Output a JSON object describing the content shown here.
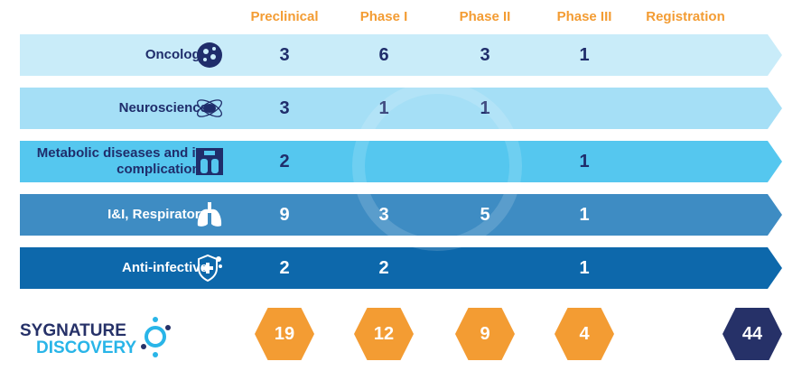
{
  "phases": [
    "Preclinical",
    "Phase I",
    "Phase II",
    "Phase III",
    "Registration"
  ],
  "rows": [
    {
      "label": "Oncology",
      "icon": "cells-icon",
      "values": [
        "3",
        "6",
        "3",
        "1",
        ""
      ],
      "color": "#c9ecf9",
      "text": "#1f2d6b"
    },
    {
      "label": "Neuroscience",
      "icon": "brain-atom-icon",
      "values": [
        "3",
        "1",
        "1",
        "",
        ""
      ],
      "color": "#a5dff6",
      "text": "#1f2d6b"
    },
    {
      "label": "Metabolic diseases and its complications",
      "icon": "scale-icon",
      "values": [
        "2",
        "",
        "",
        "1",
        ""
      ],
      "color": "#55c7ef",
      "text": "#1f2d6b"
    },
    {
      "label": "I&I, Respiratory",
      "icon": "lungs-icon",
      "values": [
        "9",
        "3",
        "5",
        "1",
        ""
      ],
      "color": "#3e8cc3",
      "text": "#ffffff"
    },
    {
      "label": "Anti-infective",
      "icon": "shield-cross-icon",
      "values": [
        "2",
        "2",
        "",
        "1",
        ""
      ],
      "color": "#0d68ab",
      "text": "#ffffff"
    }
  ],
  "totals": [
    "19",
    "12",
    "9",
    "4"
  ],
  "grand_total": "44",
  "logo": {
    "line1": "SYGNATURE",
    "line2": "DISCOVERY"
  },
  "colors": {
    "accent": "#f39c33",
    "navy": "#263168",
    "logo_blue": "#29b5e8"
  }
}
